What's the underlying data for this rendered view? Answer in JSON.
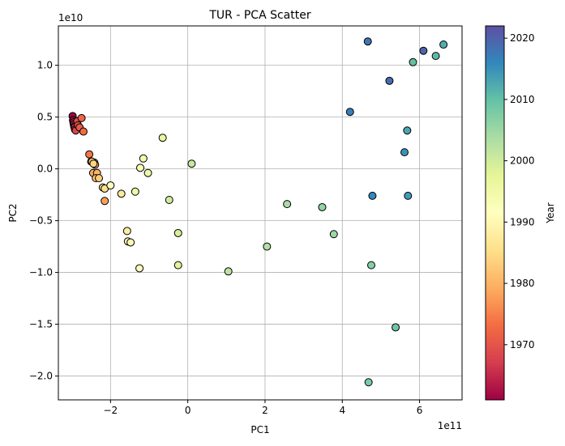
{
  "chart_data": {
    "type": "scatter",
    "title": "TUR - PCA Scatter",
    "xlabel": "PC1",
    "ylabel": "PC2",
    "x_scale_label": "1e11",
    "y_scale_label": "1e10",
    "xlim": [
      -3.35,
      7.1
    ],
    "ylim": [
      -2.23,
      1.38
    ],
    "x_ticks": [
      -2,
      0,
      2,
      4,
      6
    ],
    "x_tick_labels": [
      "−2",
      "0",
      "2",
      "4",
      "6"
    ],
    "y_ticks": [
      -2.0,
      -1.5,
      -1.0,
      -0.5,
      0.0,
      0.5,
      1.0
    ],
    "y_tick_labels": [
      "−2.0",
      "−1.5",
      "−1.0",
      "−0.5",
      "0.0",
      "0.5",
      "1.0"
    ],
    "grid": true,
    "colormap": "Spectral",
    "colorbar": {
      "label": "Year",
      "min": 1961,
      "max": 2022,
      "ticks": [
        1970,
        1980,
        1990,
        2000,
        2010,
        2020
      ],
      "tick_labels": [
        "1970",
        "1980",
        "1990",
        "2000",
        "2010",
        "2020"
      ]
    },
    "points": [
      {
        "year": 1961,
        "x": -2.98,
        "y": 0.51
      },
      {
        "year": 1962,
        "x": -2.97,
        "y": 0.47
      },
      {
        "year": 1963,
        "x": -2.96,
        "y": 0.45
      },
      {
        "year": 1964,
        "x": -2.95,
        "y": 0.43
      },
      {
        "year": 1965,
        "x": -2.94,
        "y": 0.41
      },
      {
        "year": 1966,
        "x": -2.93,
        "y": 0.4
      },
      {
        "year": 1967,
        "x": -2.92,
        "y": 0.38
      },
      {
        "year": 1968,
        "x": -2.9,
        "y": 0.37
      },
      {
        "year": 1969,
        "x": -2.86,
        "y": 0.46
      },
      {
        "year": 1970,
        "x": -2.84,
        "y": 0.42
      },
      {
        "year": 1971,
        "x": -2.8,
        "y": 0.4
      },
      {
        "year": 1972,
        "x": -2.75,
        "y": 0.49
      },
      {
        "year": 1973,
        "x": -2.7,
        "y": 0.36
      },
      {
        "year": 1974,
        "x": -2.55,
        "y": 0.14
      },
      {
        "year": 1975,
        "x": -2.5,
        "y": 0.07
      },
      {
        "year": 1976,
        "x": -2.42,
        "y": 0.06
      },
      {
        "year": 1977,
        "x": -2.4,
        "y": 0.04
      },
      {
        "year": 1978,
        "x": -2.15,
        "y": -0.31
      },
      {
        "year": 1979,
        "x": -2.45,
        "y": -0.04
      },
      {
        "year": 1980,
        "x": -2.35,
        "y": -0.04
      },
      {
        "year": 1981,
        "x": -2.48,
        "y": 0.07
      },
      {
        "year": 1982,
        "x": -2.38,
        "y": -0.09
      },
      {
        "year": 1983,
        "x": -2.3,
        "y": -0.09
      },
      {
        "year": 1984,
        "x": -2.44,
        "y": 0.05
      },
      {
        "year": 1985,
        "x": -2.2,
        "y": -0.18
      },
      {
        "year": 1986,
        "x": -2.15,
        "y": -0.19
      },
      {
        "year": 1987,
        "x": -1.72,
        "y": -0.24
      },
      {
        "year": 1988,
        "x": -1.57,
        "y": -0.6
      },
      {
        "year": 1989,
        "x": -1.55,
        "y": -0.7
      },
      {
        "year": 1990,
        "x": -1.48,
        "y": -0.71
      },
      {
        "year": 1991,
        "x": -2.0,
        "y": -0.16
      },
      {
        "year": 1992,
        "x": -1.25,
        "y": -0.96
      },
      {
        "year": 1993,
        "x": -1.23,
        "y": 0.01
      },
      {
        "year": 1994,
        "x": -1.15,
        "y": 0.1
      },
      {
        "year": 1995,
        "x": -1.03,
        "y": -0.04
      },
      {
        "year": 1996,
        "x": -1.36,
        "y": -0.22
      },
      {
        "year": 1997,
        "x": -0.65,
        "y": 0.3
      },
      {
        "year": 1998,
        "x": -0.25,
        "y": -0.93
      },
      {
        "year": 1999,
        "x": -0.25,
        "y": -0.62
      },
      {
        "year": 2000,
        "x": -0.48,
        "y": -0.3
      },
      {
        "year": 2001,
        "x": 0.1,
        "y": 0.05
      },
      {
        "year": 2002,
        "x": 1.05,
        "y": -0.99
      },
      {
        "year": 2003,
        "x": 2.05,
        "y": -0.75
      },
      {
        "year": 2004,
        "x": 2.57,
        "y": -0.34
      },
      {
        "year": 2005,
        "x": 3.78,
        "y": -0.63
      },
      {
        "year": 2006,
        "x": 3.48,
        "y": -0.37
      },
      {
        "year": 2007,
        "x": 4.75,
        "y": -0.93
      },
      {
        "year": 2008,
        "x": 4.68,
        "y": -2.06
      },
      {
        "year": 2009,
        "x": 5.38,
        "y": -1.53
      },
      {
        "year": 2010,
        "x": 5.83,
        "y": 1.03
      },
      {
        "year": 2011,
        "x": 6.42,
        "y": 1.09
      },
      {
        "year": 2012,
        "x": 6.62,
        "y": 1.2
      },
      {
        "year": 2013,
        "x": 5.68,
        "y": 0.37
      },
      {
        "year": 2014,
        "x": 5.7,
        "y": -0.26
      },
      {
        "year": 2015,
        "x": 5.61,
        "y": 0.16
      },
      {
        "year": 2016,
        "x": 4.78,
        "y": -0.26
      },
      {
        "year": 2017,
        "x": 4.2,
        "y": 0.55
      },
      {
        "year": 2018,
        "x": 4.66,
        "y": 1.23
      },
      {
        "year": 2019,
        "x": 5.22,
        "y": 0.85
      },
      {
        "year": 2020,
        "x": 6.1,
        "y": 1.14
      }
    ]
  }
}
